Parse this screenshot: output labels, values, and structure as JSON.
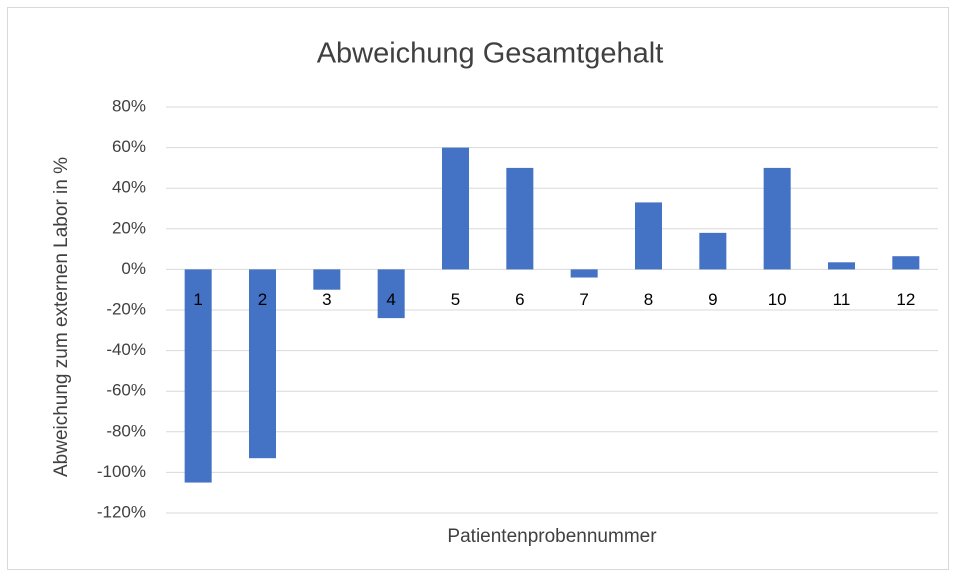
{
  "chart_data": {
    "type": "bar",
    "title": "Abweichung Gesamtgehalt",
    "x_label": "Patientenprobennummer",
    "y_label": "Abweichung zum externen Labor in %",
    "categories": [
      "1",
      "2",
      "3",
      "4",
      "5",
      "6",
      "7",
      "8",
      "9",
      "10",
      "11",
      "12"
    ],
    "values": [
      -105,
      -93,
      -10,
      -24,
      60,
      50,
      -4,
      33,
      18,
      50,
      3.5,
      6.5
    ],
    "color": "#4472c4",
    "ylim": [
      -120,
      80
    ],
    "yticks": [
      {
        "value": -120,
        "label": "-120%"
      },
      {
        "value": -100,
        "label": "-100%"
      },
      {
        "value": -80,
        "label": "-80%"
      },
      {
        "value": -60,
        "label": "-60%"
      },
      {
        "value": -40,
        "label": "-40%"
      },
      {
        "value": -20,
        "label": "-20%"
      },
      {
        "value": 0,
        "label": "0%"
      },
      {
        "value": 20,
        "label": "20%"
      },
      {
        "value": 40,
        "label": "40%"
      },
      {
        "value": 60,
        "label": "60%"
      },
      {
        "value": 80,
        "label": "80%"
      }
    ],
    "grid": true
  }
}
